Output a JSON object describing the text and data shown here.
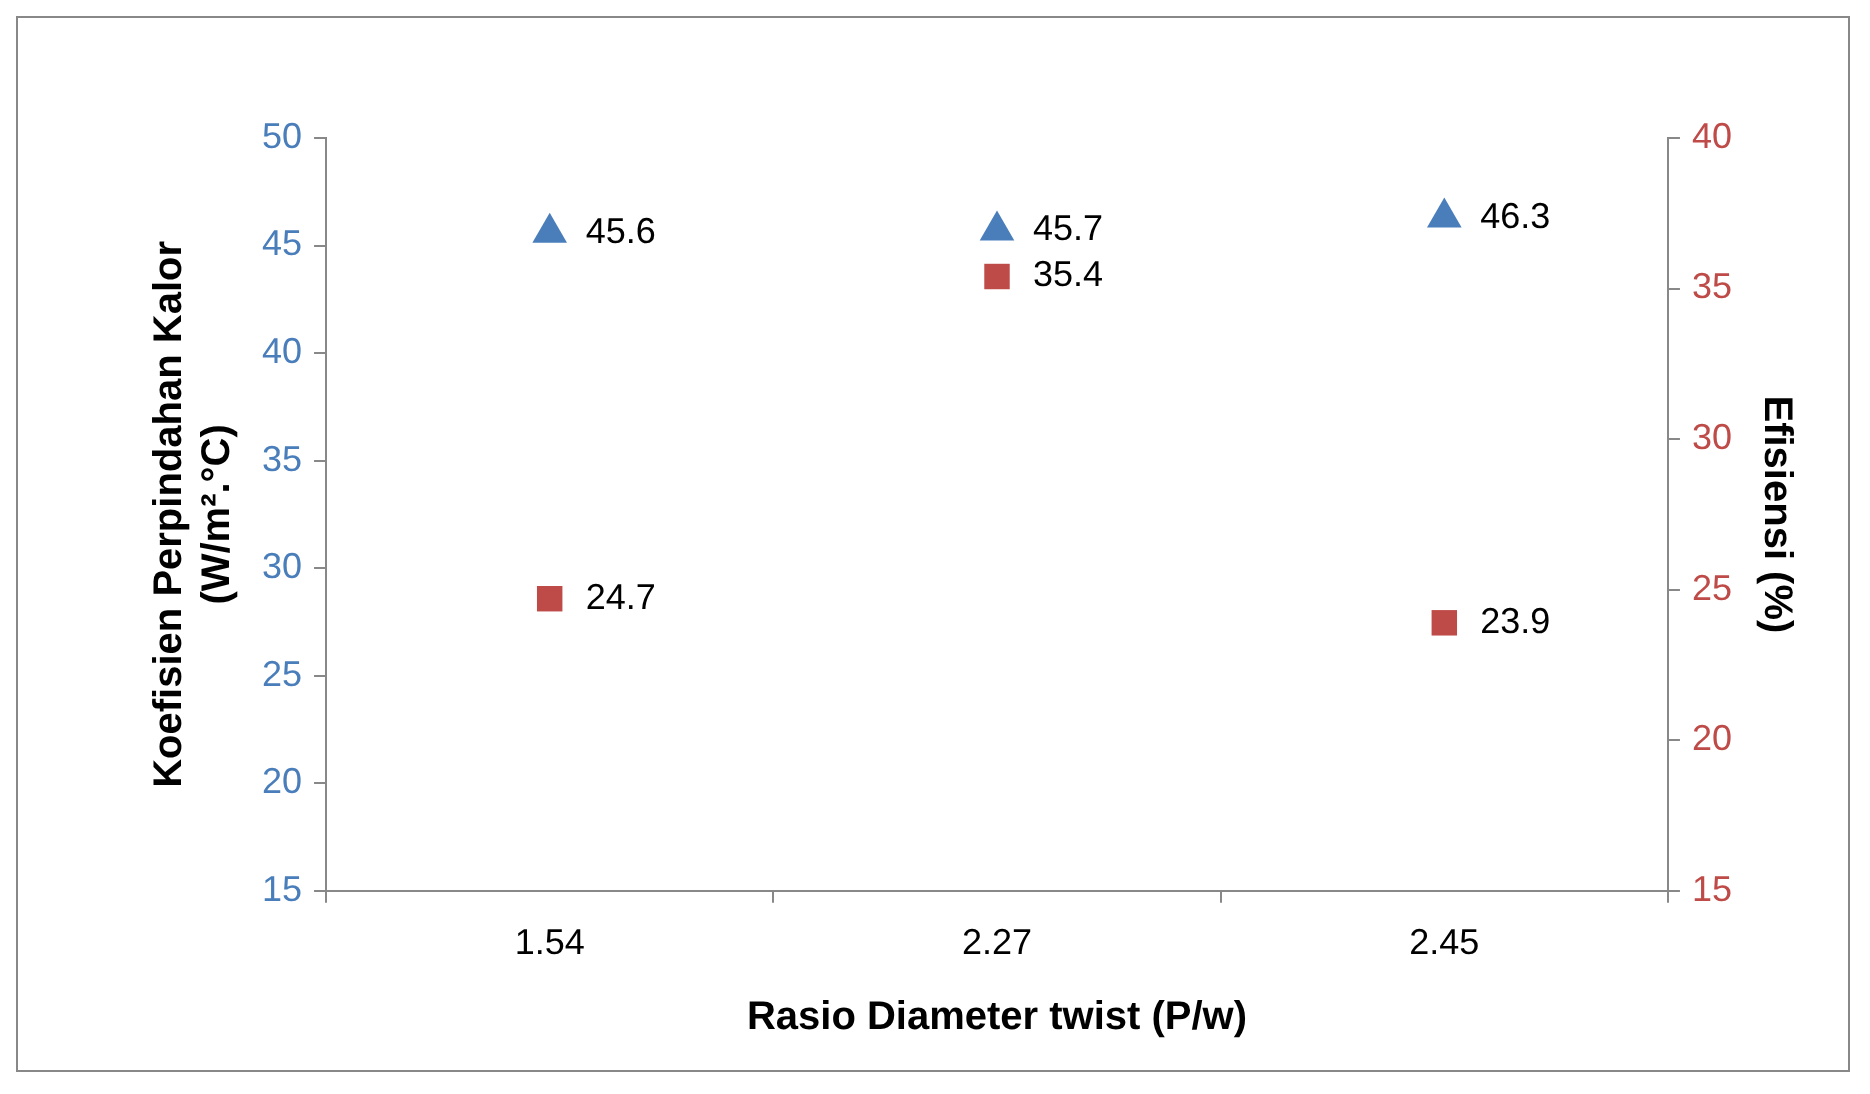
{
  "chart_data": {
    "type": "scatter",
    "categories": [
      "1.54",
      "2.27",
      "2.45"
    ],
    "xlabel": "Rasio Diameter twist (P/w)",
    "ylabel": "Koefisien Perpindahan Kalor\n(W/m².°C)",
    "y2label": "Efisiensi (%)",
    "ylim": [
      15,
      50
    ],
    "yticks": [
      15,
      20,
      25,
      30,
      35,
      40,
      45,
      50
    ],
    "y2lim": [
      15,
      40
    ],
    "y2ticks": [
      15,
      20,
      25,
      30,
      35,
      40
    ],
    "series": [
      {
        "color": "#4a7ebb",
        "marker": "triangle",
        "values": [
          45.6,
          45.7,
          46.3
        ]
      },
      {
        "color": "#be4b48",
        "marker": "square",
        "axis": "y2",
        "values": [
          24.7,
          35.4,
          23.9
        ]
      }
    ],
    "data_labels": true,
    "grid": false,
    "legend": false
  }
}
